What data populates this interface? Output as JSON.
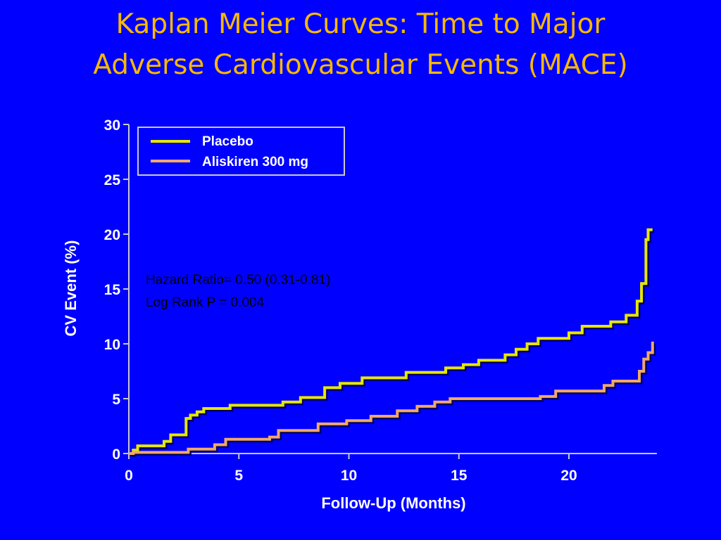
{
  "title": {
    "line1": "Kaplan Meier Curves: Time to Major",
    "line2": "Adverse Cardiovascular Events (MACE)"
  },
  "colors": {
    "background": "#0000ff",
    "title": "#f5b800",
    "placebo": "#e6e600",
    "aliskiren": "#f0a868",
    "axis": "#c8c8c8"
  },
  "annotations": {
    "hazard_ratio": "Hazard Ratio= 0.50 (0.31-0.81)",
    "log_rank": "Log Rank P = 0.004"
  },
  "chart_data": {
    "type": "line",
    "step": true,
    "xlabel": "Follow-Up (Months)",
    "ylabel": "CV Event (%)",
    "xlim": [
      0,
      24
    ],
    "ylim": [
      0,
      30
    ],
    "xticks": [
      "0",
      "5",
      "10",
      "15",
      "20"
    ],
    "yticks": [
      "0",
      "5",
      "10",
      "15",
      "20",
      "25",
      "30"
    ],
    "legend_position": "top-left",
    "series": [
      {
        "name": "Placebo",
        "color": "#e6e600",
        "x": [
          0,
          0.2,
          0.4,
          1.6,
          1.9,
          2.6,
          2.8,
          3.1,
          3.4,
          4.6,
          7.0,
          7.8,
          8.9,
          9.6,
          10.6,
          12.6,
          14.4,
          15.2,
          15.9,
          17.1,
          17.6,
          18.1,
          18.6,
          20.0,
          20.6,
          21.9,
          22.6,
          23.1,
          23.3,
          23.5,
          23.6,
          23.8
        ],
        "y": [
          0,
          0.3,
          0.7,
          1.1,
          1.7,
          3.2,
          3.5,
          3.8,
          4.1,
          4.4,
          4.7,
          5.1,
          6.0,
          6.4,
          6.9,
          7.4,
          7.8,
          8.1,
          8.5,
          9.0,
          9.5,
          10.0,
          10.5,
          11.0,
          11.6,
          12.0,
          12.6,
          13.9,
          15.5,
          19.5,
          20.4,
          20.4
        ]
      },
      {
        "name": "Aliskiren 300 mg",
        "color": "#f0a868",
        "x": [
          0,
          0.2,
          2.7,
          3.9,
          4.4,
          6.4,
          6.8,
          7.2,
          8.6,
          9.9,
          11.0,
          12.2,
          13.1,
          13.9,
          14.6,
          18.7,
          19.4,
          21.6,
          22.0,
          23.2,
          23.4,
          23.6,
          23.8
        ],
        "y": [
          0,
          0.1,
          0.4,
          0.8,
          1.3,
          1.5,
          2.1,
          2.1,
          2.7,
          3.0,
          3.4,
          3.9,
          4.3,
          4.7,
          5.0,
          5.2,
          5.7,
          6.2,
          6.6,
          7.5,
          8.6,
          9.2,
          10.2
        ]
      }
    ]
  }
}
